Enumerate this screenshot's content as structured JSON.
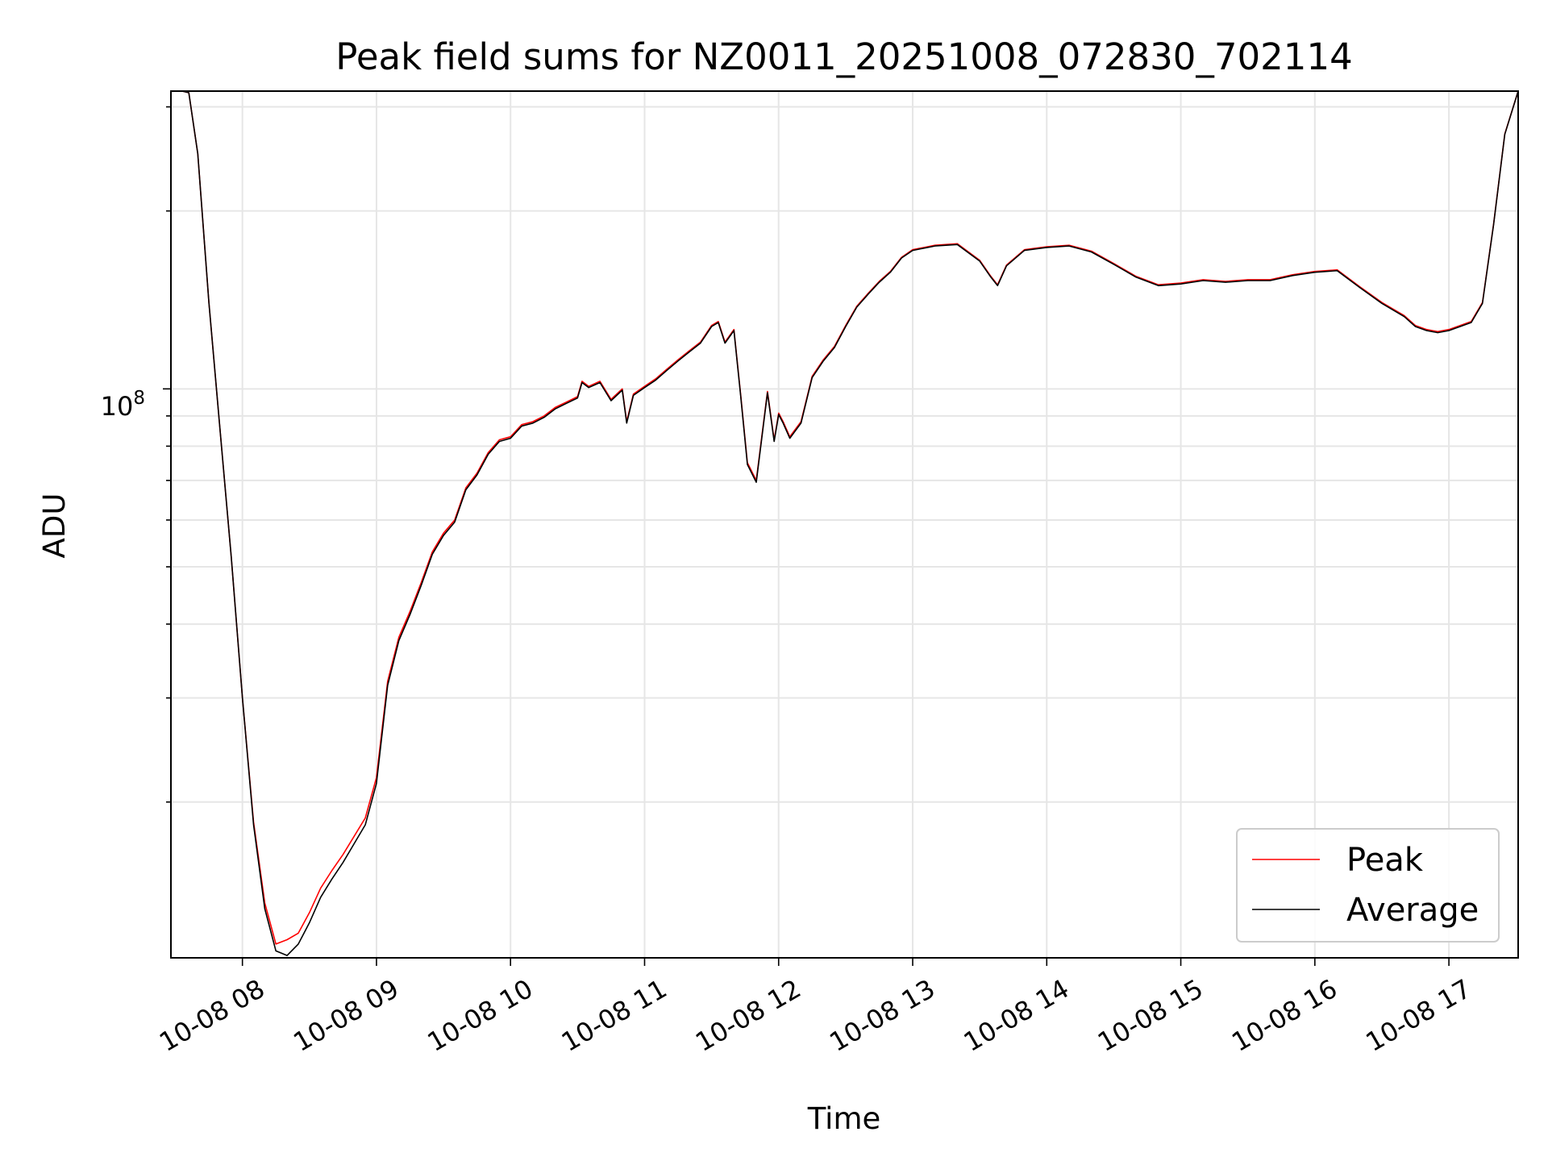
{
  "chart_data": {
    "type": "line",
    "title": "Peak field sums for NZ0011_20251008_072830_702114",
    "xlabel": "Time",
    "ylabel": "ADU",
    "y_scale": "log",
    "y_major_tick_label": {
      "base": "10",
      "exponent": "8"
    },
    "x_tick_labels": [
      "10-08 08",
      "10-08 09",
      "10-08 10",
      "10-08 11",
      "10-08 12",
      "10-08 13",
      "10-08 14",
      "10-08 15",
      "10-08 16",
      "10-08 17"
    ],
    "xlim": [
      "2025-10-08 07:28",
      "2025-10-08 17:31"
    ],
    "ylim": [
      10900000,
      319000000
    ],
    "grid": true,
    "legend_position": "lower right",
    "colors": {
      "peak": "#ff0000",
      "average": "#000000"
    },
    "series": [
      {
        "name": "Peak",
        "color": "#ff0000",
        "x": [
          "2025-10-08 07:28",
          "2025-10-08 07:33",
          "2025-10-08 07:36",
          "2025-10-08 07:40",
          "2025-10-08 07:45",
          "2025-10-08 07:50",
          "2025-10-08 07:55",
          "2025-10-08 08:00",
          "2025-10-08 08:05",
          "2025-10-08 08:10",
          "2025-10-08 08:15",
          "2025-10-08 08:20",
          "2025-10-08 08:25",
          "2025-10-08 08:30",
          "2025-10-08 08:35",
          "2025-10-08 08:40",
          "2025-10-08 08:45",
          "2025-10-08 08:50",
          "2025-10-08 08:55",
          "2025-10-08 09:00",
          "2025-10-08 09:05",
          "2025-10-08 09:10",
          "2025-10-08 09:15",
          "2025-10-08 09:20",
          "2025-10-08 09:25",
          "2025-10-08 09:30",
          "2025-10-08 09:35",
          "2025-10-08 09:40",
          "2025-10-08 09:45",
          "2025-10-08 09:50",
          "2025-10-08 09:55",
          "2025-10-08 10:00",
          "2025-10-08 10:05",
          "2025-10-08 10:10",
          "2025-10-08 10:15",
          "2025-10-08 10:20",
          "2025-10-08 10:25",
          "2025-10-08 10:30",
          "2025-10-08 10:32",
          "2025-10-08 10:35",
          "2025-10-08 10:40",
          "2025-10-08 10:45",
          "2025-10-08 10:50",
          "2025-10-08 10:52",
          "2025-10-08 10:55",
          "2025-10-08 11:00",
          "2025-10-08 11:05",
          "2025-10-08 11:10",
          "2025-10-08 11:15",
          "2025-10-08 11:20",
          "2025-10-08 11:25",
          "2025-10-08 11:30",
          "2025-10-08 11:33",
          "2025-10-08 11:36",
          "2025-10-08 11:40",
          "2025-10-08 11:43",
          "2025-10-08 11:46",
          "2025-10-08 11:50",
          "2025-10-08 11:55",
          "2025-10-08 11:58",
          "2025-10-08 12:00",
          "2025-10-08 12:02",
          "2025-10-08 12:05",
          "2025-10-08 12:10",
          "2025-10-08 12:15",
          "2025-10-08 12:20",
          "2025-10-08 12:25",
          "2025-10-08 12:30",
          "2025-10-08 12:35",
          "2025-10-08 12:40",
          "2025-10-08 12:45",
          "2025-10-08 12:50",
          "2025-10-08 12:55",
          "2025-10-08 13:00",
          "2025-10-08 13:10",
          "2025-10-08 13:20",
          "2025-10-08 13:30",
          "2025-10-08 13:35",
          "2025-10-08 13:38",
          "2025-10-08 13:42",
          "2025-10-08 13:50",
          "2025-10-08 14:00",
          "2025-10-08 14:10",
          "2025-10-08 14:20",
          "2025-10-08 14:30",
          "2025-10-08 14:40",
          "2025-10-08 14:50",
          "2025-10-08 15:00",
          "2025-10-08 15:10",
          "2025-10-08 15:20",
          "2025-10-08 15:30",
          "2025-10-08 15:40",
          "2025-10-08 15:50",
          "2025-10-08 16:00",
          "2025-10-08 16:10",
          "2025-10-08 16:20",
          "2025-10-08 16:30",
          "2025-10-08 16:40",
          "2025-10-08 16:45",
          "2025-10-08 16:50",
          "2025-10-08 16:55",
          "2025-10-08 17:00",
          "2025-10-08 17:05",
          "2025-10-08 17:10",
          "2025-10-08 17:15",
          "2025-10-08 17:20",
          "2025-10-08 17:25",
          "2025-10-08 17:31"
        ],
        "y": [
          319000000,
          319000000,
          317000000,
          250000000,
          140000000,
          85000000,
          52000000,
          30000000,
          18500000,
          13500000,
          11500000,
          11700000,
          12000000,
          13000000,
          14300000,
          15300000,
          16300000,
          17500000,
          18800000,
          22000000,
          32000000,
          38000000,
          42000000,
          47000000,
          53000000,
          57000000,
          60000000,
          68000000,
          72000000,
          78000000,
          82000000,
          83000000,
          87000000,
          88000000,
          90000000,
          93000000,
          95000000,
          97000000,
          103000000,
          101000000,
          103000000,
          96000000,
          100000000,
          88000000,
          98000000,
          101000000,
          104000000,
          108000000,
          112000000,
          116000000,
          120000000,
          128000000,
          130000000,
          120000000,
          126000000,
          98000000,
          75000000,
          70000000,
          99000000,
          82000000,
          91000000,
          88000000,
          83000000,
          88000000,
          105000000,
          112000000,
          118000000,
          128000000,
          138000000,
          145000000,
          152000000,
          158000000,
          167000000,
          172000000,
          175000000,
          176000000,
          165000000,
          155000000,
          150000000,
          162000000,
          172000000,
          174000000,
          175000000,
          171000000,
          163000000,
          155000000,
          150000000,
          151000000,
          153000000,
          152000000,
          153000000,
          153000000,
          156000000,
          158000000,
          159000000,
          149000000,
          140000000,
          133000000,
          128000000,
          126000000,
          125000000,
          126000000,
          128000000,
          130000000,
          140000000,
          190000000,
          270000000,
          319000000
        ]
      },
      {
        "name": "Average",
        "color": "#000000",
        "x": [
          "2025-10-08 07:28",
          "2025-10-08 07:33",
          "2025-10-08 07:36",
          "2025-10-08 07:40",
          "2025-10-08 07:45",
          "2025-10-08 07:50",
          "2025-10-08 07:55",
          "2025-10-08 08:00",
          "2025-10-08 08:05",
          "2025-10-08 08:10",
          "2025-10-08 08:15",
          "2025-10-08 08:20",
          "2025-10-08 08:25",
          "2025-10-08 08:30",
          "2025-10-08 08:35",
          "2025-10-08 08:40",
          "2025-10-08 08:45",
          "2025-10-08 08:50",
          "2025-10-08 08:55",
          "2025-10-08 09:00",
          "2025-10-08 09:05",
          "2025-10-08 09:10",
          "2025-10-08 09:15",
          "2025-10-08 09:20",
          "2025-10-08 09:25",
          "2025-10-08 09:30",
          "2025-10-08 09:35",
          "2025-10-08 09:40",
          "2025-10-08 09:45",
          "2025-10-08 09:50",
          "2025-10-08 09:55",
          "2025-10-08 10:00",
          "2025-10-08 10:05",
          "2025-10-08 10:10",
          "2025-10-08 10:15",
          "2025-10-08 10:20",
          "2025-10-08 10:25",
          "2025-10-08 10:30",
          "2025-10-08 10:32",
          "2025-10-08 10:35",
          "2025-10-08 10:40",
          "2025-10-08 10:45",
          "2025-10-08 10:50",
          "2025-10-08 10:52",
          "2025-10-08 10:55",
          "2025-10-08 11:00",
          "2025-10-08 11:05",
          "2025-10-08 11:10",
          "2025-10-08 11:15",
          "2025-10-08 11:20",
          "2025-10-08 11:25",
          "2025-10-08 11:30",
          "2025-10-08 11:33",
          "2025-10-08 11:36",
          "2025-10-08 11:40",
          "2025-10-08 11:43",
          "2025-10-08 11:46",
          "2025-10-08 11:50",
          "2025-10-08 11:55",
          "2025-10-08 11:58",
          "2025-10-08 12:00",
          "2025-10-08 12:02",
          "2025-10-08 12:05",
          "2025-10-08 12:10",
          "2025-10-08 12:15",
          "2025-10-08 12:20",
          "2025-10-08 12:25",
          "2025-10-08 12:30",
          "2025-10-08 12:35",
          "2025-10-08 12:40",
          "2025-10-08 12:45",
          "2025-10-08 12:50",
          "2025-10-08 12:55",
          "2025-10-08 13:00",
          "2025-10-08 13:10",
          "2025-10-08 13:20",
          "2025-10-08 13:30",
          "2025-10-08 13:35",
          "2025-10-08 13:38",
          "2025-10-08 13:42",
          "2025-10-08 13:50",
          "2025-10-08 14:00",
          "2025-10-08 14:10",
          "2025-10-08 14:20",
          "2025-10-08 14:30",
          "2025-10-08 14:40",
          "2025-10-08 14:50",
          "2025-10-08 15:00",
          "2025-10-08 15:10",
          "2025-10-08 15:20",
          "2025-10-08 15:30",
          "2025-10-08 15:40",
          "2025-10-08 15:50",
          "2025-10-08 16:00",
          "2025-10-08 16:10",
          "2025-10-08 16:20",
          "2025-10-08 16:30",
          "2025-10-08 16:40",
          "2025-10-08 16:45",
          "2025-10-08 16:50",
          "2025-10-08 16:55",
          "2025-10-08 17:00",
          "2025-10-08 17:05",
          "2025-10-08 17:10",
          "2025-10-08 17:15",
          "2025-10-08 17:20",
          "2025-10-08 17:25",
          "2025-10-08 17:31"
        ],
        "y": [
          319000000,
          319000000,
          317000000,
          250000000,
          140000000,
          85000000,
          52000000,
          30000000,
          18300000,
          13200000,
          11200000,
          11000000,
          11500000,
          12500000,
          13800000,
          14800000,
          15800000,
          17000000,
          18300000,
          21500000,
          31500000,
          37500000,
          41500000,
          46500000,
          52500000,
          56500000,
          59500000,
          67500000,
          71500000,
          77500000,
          81500000,
          82500000,
          86500000,
          87500000,
          89500000,
          92500000,
          94500000,
          96500000,
          102500000,
          100500000,
          102500000,
          95500000,
          99500000,
          87500000,
          97500000,
          100500000,
          103500000,
          107500000,
          111500000,
          115500000,
          119500000,
          127500000,
          129500000,
          119500000,
          125500000,
          97500000,
          74500000,
          69500000,
          98500000,
          81500000,
          90500000,
          87500000,
          82500000,
          87500000,
          104500000,
          111500000,
          117500000,
          127500000,
          137500000,
          144500000,
          151500000,
          157500000,
          166500000,
          171500000,
          174500000,
          175500000,
          164500000,
          154500000,
          149500000,
          161500000,
          171500000,
          173500000,
          174500000,
          170500000,
          162500000,
          154500000,
          149500000,
          150500000,
          152500000,
          151500000,
          152500000,
          152500000,
          155500000,
          157500000,
          158500000,
          148500000,
          139500000,
          132500000,
          127500000,
          125500000,
          124500000,
          125500000,
          127500000,
          129500000,
          139500000,
          189500000,
          269500000,
          319000000
        ]
      }
    ]
  }
}
